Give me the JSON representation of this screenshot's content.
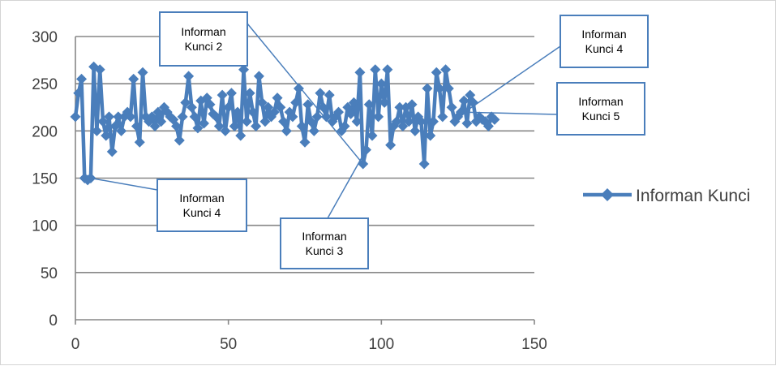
{
  "colors": {
    "series": "#4a7ebb",
    "grid": "#878787",
    "axis": "#878787",
    "callout_border": "#4a7ebb",
    "tick_text": "#404040"
  },
  "chart_data": {
    "type": "line",
    "title": "",
    "xlabel": "",
    "ylabel": "",
    "xlim": [
      0,
      150
    ],
    "ylim": [
      0,
      300
    ],
    "x_ticks": [
      0,
      50,
      100,
      150
    ],
    "y_ticks": [
      0,
      50,
      100,
      150,
      200,
      250,
      300
    ],
    "grid": "horizontal",
    "legend_placement": "right",
    "marker": "diamond",
    "series": [
      {
        "name": "Informan Kunci",
        "x": [
          0,
          1,
          2,
          3,
          4,
          5,
          6,
          7,
          8,
          9,
          10,
          11,
          12,
          13,
          14,
          15,
          16,
          17,
          18,
          19,
          20,
          21,
          22,
          23,
          24,
          25,
          26,
          27,
          28,
          29,
          30,
          31,
          32,
          33,
          34,
          35,
          36,
          37,
          38,
          39,
          40,
          41,
          42,
          43,
          44,
          45,
          46,
          47,
          48,
          49,
          50,
          51,
          52,
          53,
          54,
          55,
          56,
          57,
          58,
          59,
          60,
          61,
          62,
          63,
          64,
          65,
          66,
          67,
          68,
          69,
          70,
          71,
          72,
          73,
          74,
          75,
          76,
          77,
          78,
          79,
          80,
          81,
          82,
          83,
          84,
          85,
          86,
          87,
          88,
          89,
          90,
          91,
          92,
          93,
          94,
          95,
          96,
          97,
          98,
          99,
          100,
          101,
          102,
          103,
          104,
          105,
          106,
          107,
          108,
          109,
          110,
          111,
          112,
          113,
          114,
          115,
          116,
          117,
          118,
          119,
          120,
          121,
          122,
          123,
          124,
          125,
          126,
          127,
          128,
          129,
          130,
          131,
          132,
          133,
          134,
          135,
          136,
          137
        ],
        "values": [
          215,
          240,
          255,
          150,
          148,
          150,
          268,
          200,
          265,
          210,
          195,
          215,
          178,
          205,
          215,
          200,
          215,
          220,
          215,
          255,
          205,
          188,
          262,
          215,
          210,
          215,
          205,
          220,
          210,
          225,
          220,
          215,
          212,
          205,
          190,
          215,
          230,
          258,
          225,
          215,
          203,
          232,
          208,
          235,
          228,
          218,
          215,
          205,
          238,
          200,
          225,
          240,
          205,
          220,
          195,
          265,
          210,
          240,
          220,
          205,
          258,
          230,
          210,
          225,
          215,
          220,
          235,
          225,
          210,
          200,
          220,
          215,
          230,
          245,
          205,
          188,
          228,
          210,
          200,
          215,
          240,
          225,
          215,
          238,
          210,
          215,
          220,
          200,
          205,
          225,
          218,
          230,
          210,
          262,
          165,
          180,
          228,
          195,
          265,
          215,
          250,
          230,
          265,
          185,
          205,
          210,
          225,
          205,
          225,
          210,
          228,
          200,
          215,
          210,
          165,
          245,
          195,
          210,
          262,
          245,
          215,
          265,
          245,
          225,
          210,
          215,
          220,
          232,
          208,
          238,
          230,
          210,
          215,
          212,
          210,
          205,
          215,
          212
        ]
      }
    ],
    "annotations": [
      {
        "text_line1": "Informan",
        "text_line2": "Kunci 2",
        "target_index": 94
      },
      {
        "text_line1": "Informan",
        "text_line2": "Kunci 4",
        "target_index": 125
      },
      {
        "text_line1": "Informan",
        "text_line2": "Kunci 5",
        "target_index": 126
      },
      {
        "text_line1": "Informan",
        "text_line2": "Kunci 4",
        "target_index": 5
      },
      {
        "text_line1": "Informan",
        "text_line2": "Kunci 3",
        "target_index": 95
      }
    ]
  }
}
